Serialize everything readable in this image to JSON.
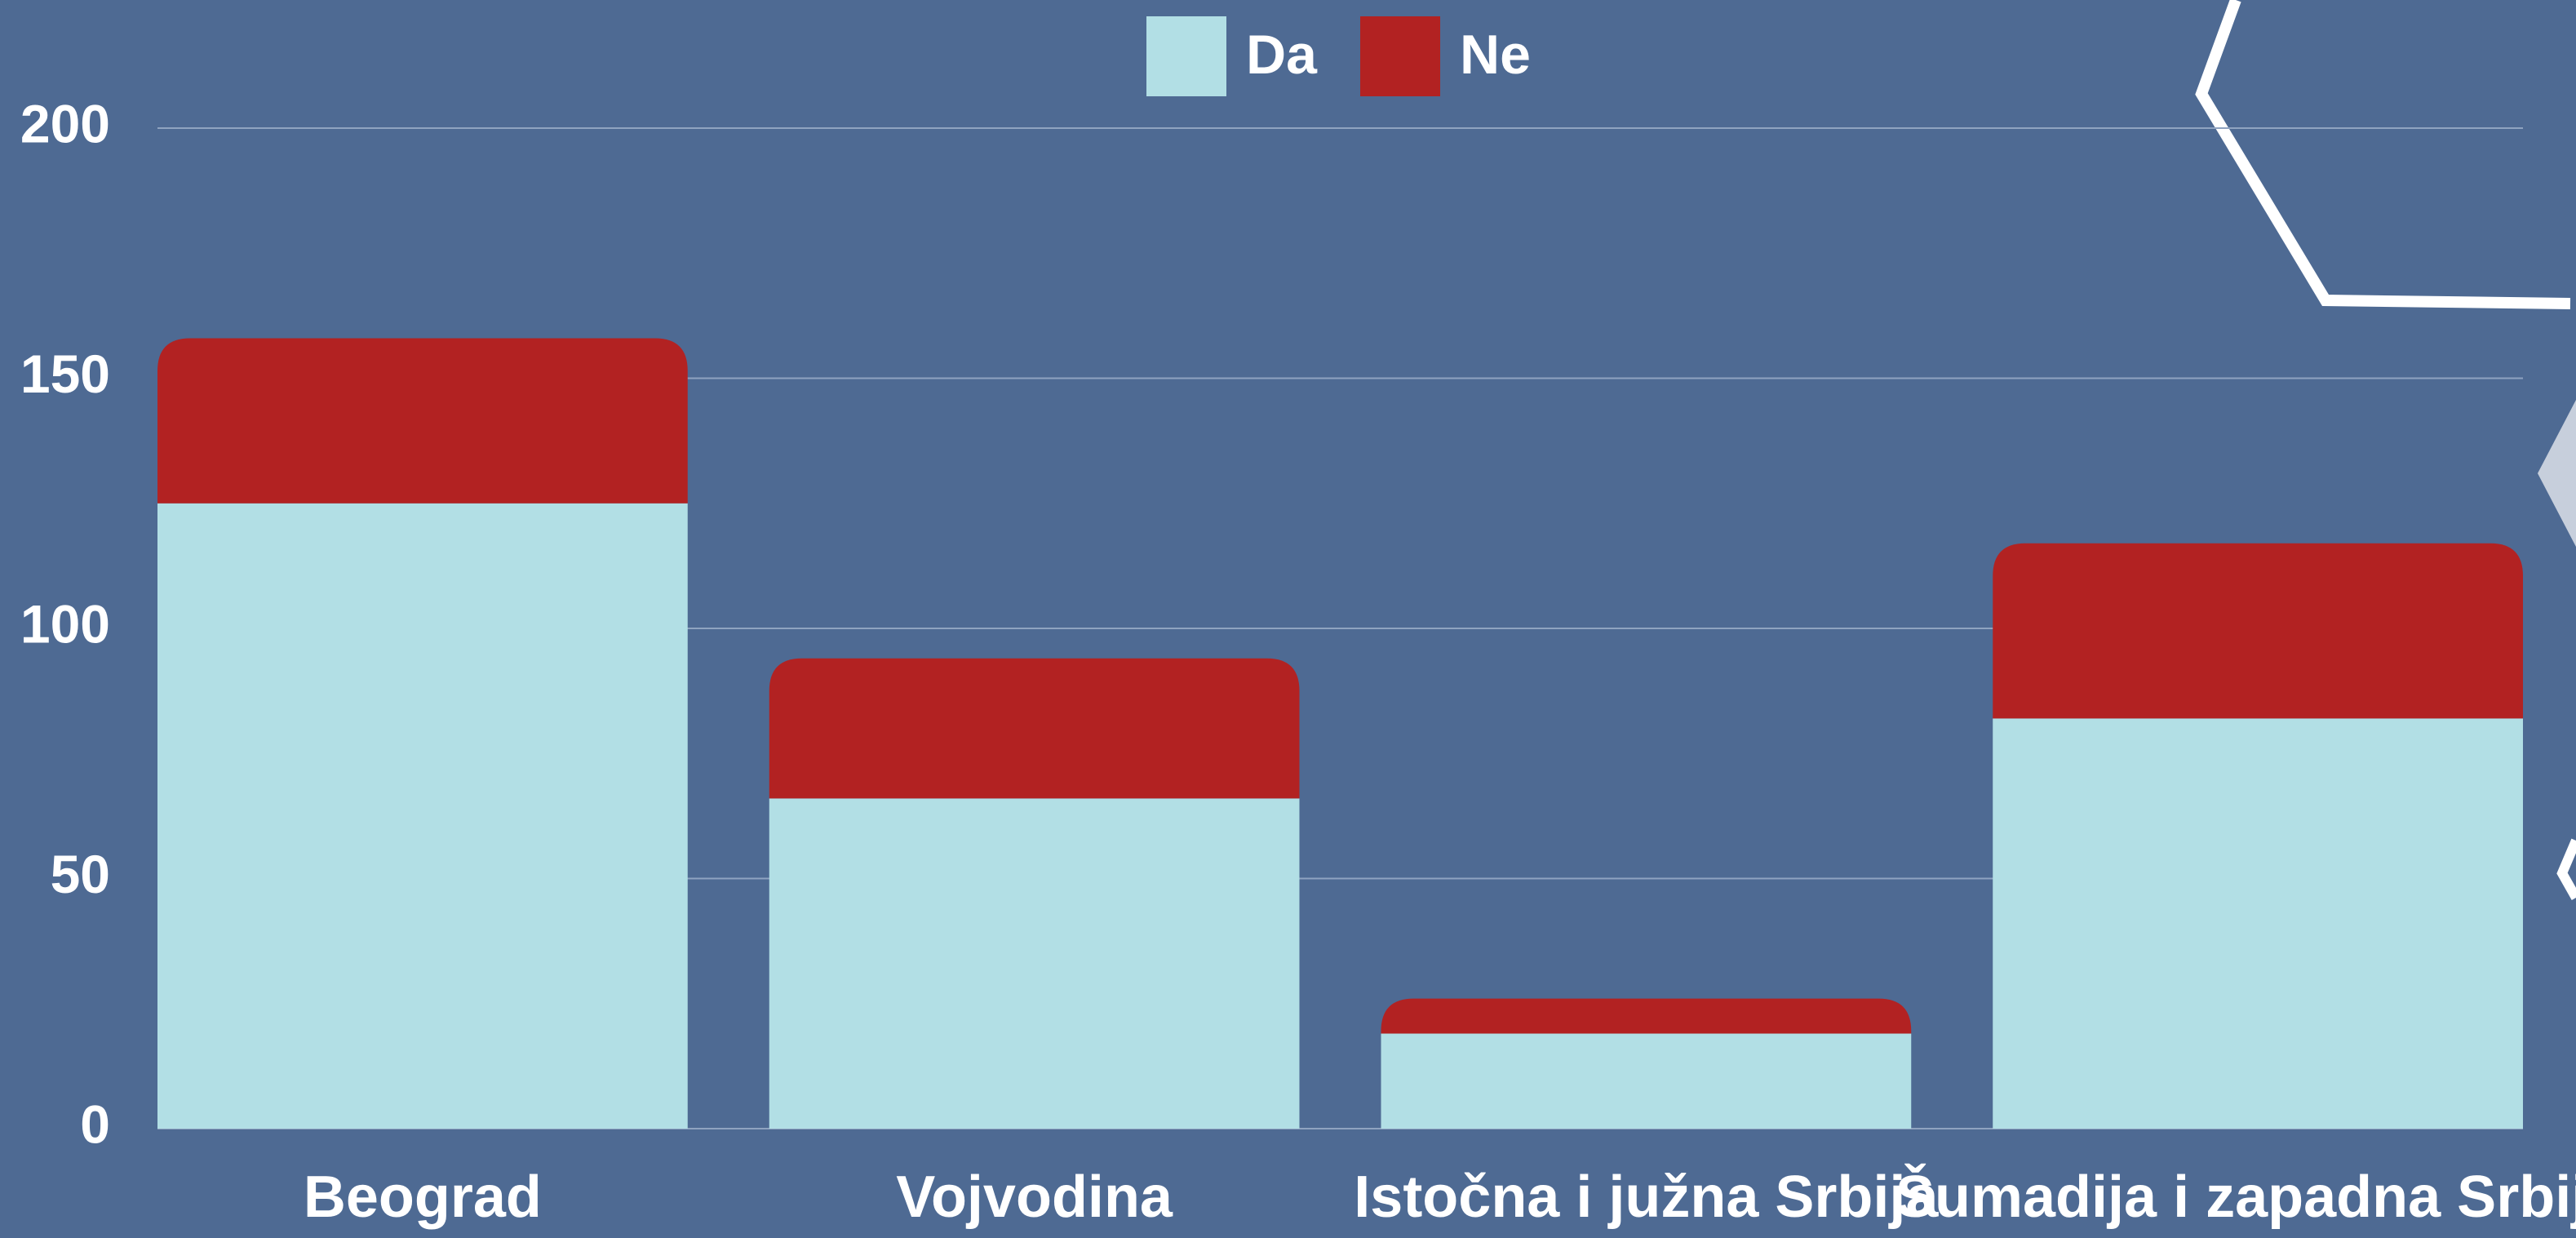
{
  "chart_data": {
    "type": "bar",
    "stacked": true,
    "categories": [
      "Beograd",
      "Vojvodina",
      "Istočna i južna Srbija",
      "Šumadija i zapadna Srbija"
    ],
    "series": [
      {
        "name": "Da",
        "color": "#b2dfe5",
        "values": [
          125,
          66,
          19,
          82
        ]
      },
      {
        "name": "Ne",
        "color": "#b22222",
        "values": [
          33,
          28,
          7,
          35
        ]
      }
    ],
    "ylim": [
      0,
      200
    ],
    "yticks": [
      0,
      50,
      100,
      150,
      200
    ],
    "grid": true
  }
}
